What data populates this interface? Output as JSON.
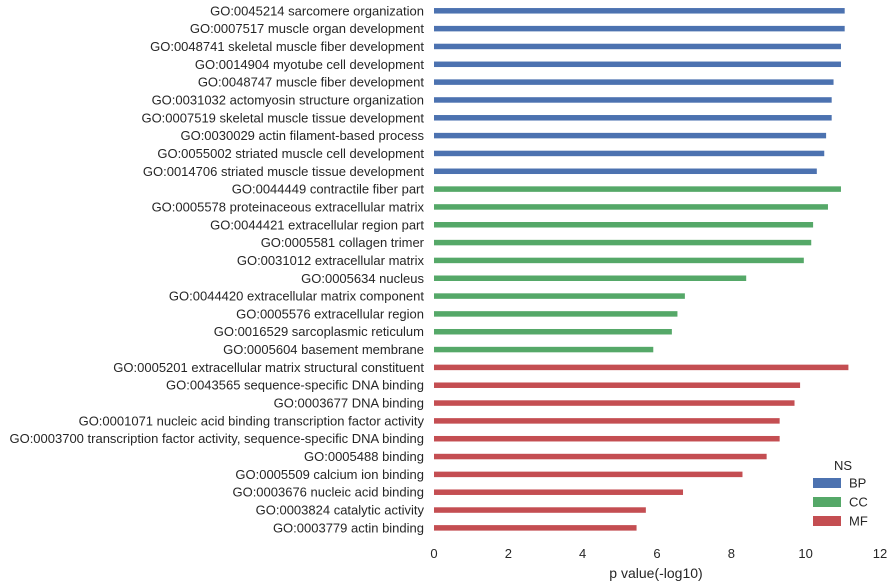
{
  "chart_data": {
    "type": "bar",
    "orientation": "horizontal",
    "categories": [
      "GO:0045214 sarcomere organization",
      "GO:0007517 muscle organ development",
      "GO:0048741 skeletal muscle fiber development",
      "GO:0014904 myotube cell development",
      "GO:0048747 muscle fiber development",
      "GO:0031032 actomyosin structure organization",
      "GO:0007519 skeletal muscle tissue development",
      "GO:0030029 actin filament-based process",
      "GO:0055002 striated muscle cell development",
      "GO:0014706 striated muscle tissue development",
      "GO:0044449 contractile fiber part",
      "GO:0005578 proteinaceous extracellular matrix",
      "GO:0044421 extracellular region part",
      "GO:0005581 collagen trimer",
      "GO:0031012 extracellular matrix",
      "GO:0005634 nucleus",
      "GO:0044420 extracellular matrix component",
      "GO:0005576 extracellular region",
      "GO:0016529 sarcoplasmic reticulum",
      "GO:0005604 basement membrane",
      "GO:0005201 extracellular matrix structural constituent",
      "GO:0043565 sequence-specific DNA binding",
      "GO:0003677 DNA binding",
      "GO:0001071 nucleic acid binding transcription factor activity",
      "GO:0003700 transcription factor activity, sequence-specific DNA binding",
      "GO:0005488 binding",
      "GO:0005509 calcium ion binding",
      "GO:0003676 nucleic acid binding",
      "GO:0003824 catalytic activity",
      "GO:0003779 actin binding"
    ],
    "values": [
      11.05,
      11.05,
      10.95,
      10.95,
      10.75,
      10.7,
      10.7,
      10.55,
      10.5,
      10.3,
      10.95,
      10.6,
      10.2,
      10.15,
      9.95,
      8.4,
      6.75,
      6.55,
      6.4,
      5.9,
      11.15,
      9.85,
      9.7,
      9.3,
      9.3,
      8.95,
      8.3,
      6.7,
      5.7,
      5.45
    ],
    "groups": [
      "BP",
      "BP",
      "BP",
      "BP",
      "BP",
      "BP",
      "BP",
      "BP",
      "BP",
      "BP",
      "CC",
      "CC",
      "CC",
      "CC",
      "CC",
      "CC",
      "CC",
      "CC",
      "CC",
      "CC",
      "MF",
      "MF",
      "MF",
      "MF",
      "MF",
      "MF",
      "MF",
      "MF",
      "MF",
      "MF"
    ],
    "series": [
      {
        "name": "BP",
        "color": "#4c72b0"
      },
      {
        "name": "CC",
        "color": "#55a868"
      },
      {
        "name": "MF",
        "color": "#c44e52"
      }
    ],
    "xlabel": "p value(-log10)",
    "ylabel": "",
    "xlim": [
      0,
      12
    ],
    "xticks": [
      "0",
      "2",
      "4",
      "6",
      "8",
      "10",
      "12"
    ],
    "legend": {
      "title": "NS",
      "position": "bottom-right"
    },
    "grid": false
  }
}
